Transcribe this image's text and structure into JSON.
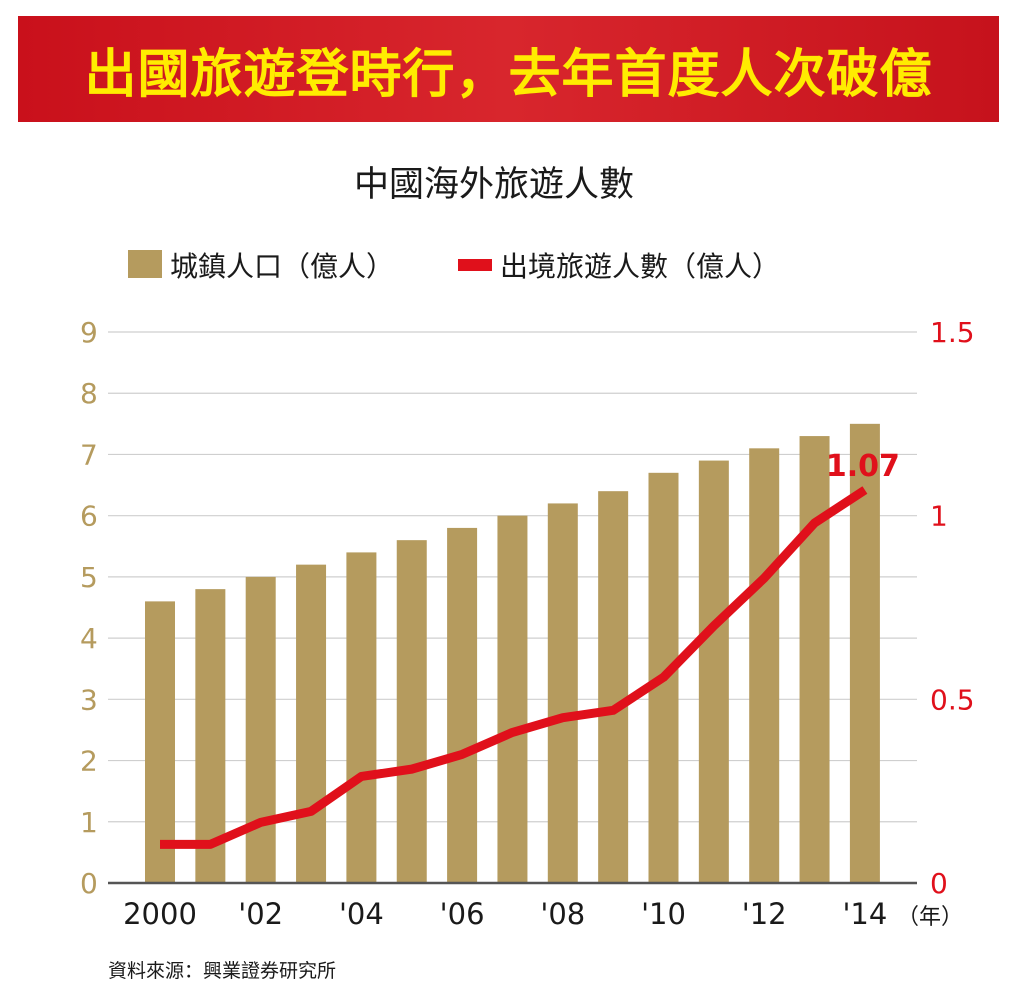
{
  "banner": {
    "title": "出國旅遊登時行，去年首度人次破億"
  },
  "chart_data": {
    "type": "bar+line",
    "title": "中國海外旅遊人數",
    "legend_position": "top-left",
    "grid": true,
    "x": [
      2000,
      2001,
      2002,
      2003,
      2004,
      2005,
      2006,
      2007,
      2008,
      2009,
      2010,
      2011,
      2012,
      2013,
      2014
    ],
    "x_tick_labels": [
      "2000",
      "'02",
      "'04",
      "'06",
      "'08",
      "'10",
      "'12",
      "'14"
    ],
    "x_tick_values": [
      2000,
      2002,
      2004,
      2006,
      2008,
      2010,
      2012,
      2014
    ],
    "x_unit": "（年）",
    "series": [
      {
        "name": "城鎮人口（億人）",
        "type": "bar",
        "axis": "left",
        "color": "#b59b5e",
        "values": [
          4.6,
          4.8,
          5.0,
          5.2,
          5.4,
          5.6,
          5.8,
          6.0,
          6.2,
          6.4,
          6.7,
          6.9,
          7.1,
          7.3,
          7.5
        ]
      },
      {
        "name": "出境旅遊人數（億人）",
        "type": "line",
        "axis": "right",
        "color": "#e0101b",
        "values": [
          0.105,
          0.105,
          0.165,
          0.195,
          0.29,
          0.31,
          0.35,
          0.41,
          0.45,
          0.47,
          0.56,
          0.7,
          0.83,
          0.98,
          1.07
        ]
      }
    ],
    "y_left": {
      "ylim": [
        0,
        9
      ],
      "ticks": [
        0,
        1,
        2,
        3,
        4,
        5,
        6,
        7,
        8,
        9
      ],
      "color": "#b59b5e"
    },
    "y_right": {
      "ylim": [
        0,
        1.5
      ],
      "ticks": [
        "0",
        "0.5",
        "1",
        "1.5"
      ],
      "tick_values": [
        0,
        0.5,
        1,
        1.5
      ],
      "color": "#e0101b"
    },
    "annotation": {
      "text": "1.07",
      "x": 2014,
      "y": 1.07
    }
  },
  "legend": {
    "bar_label": "城鎮人口（億人）",
    "line_label": "出境旅遊人數（億人）"
  },
  "source": "資料來源：興業證券研究所"
}
